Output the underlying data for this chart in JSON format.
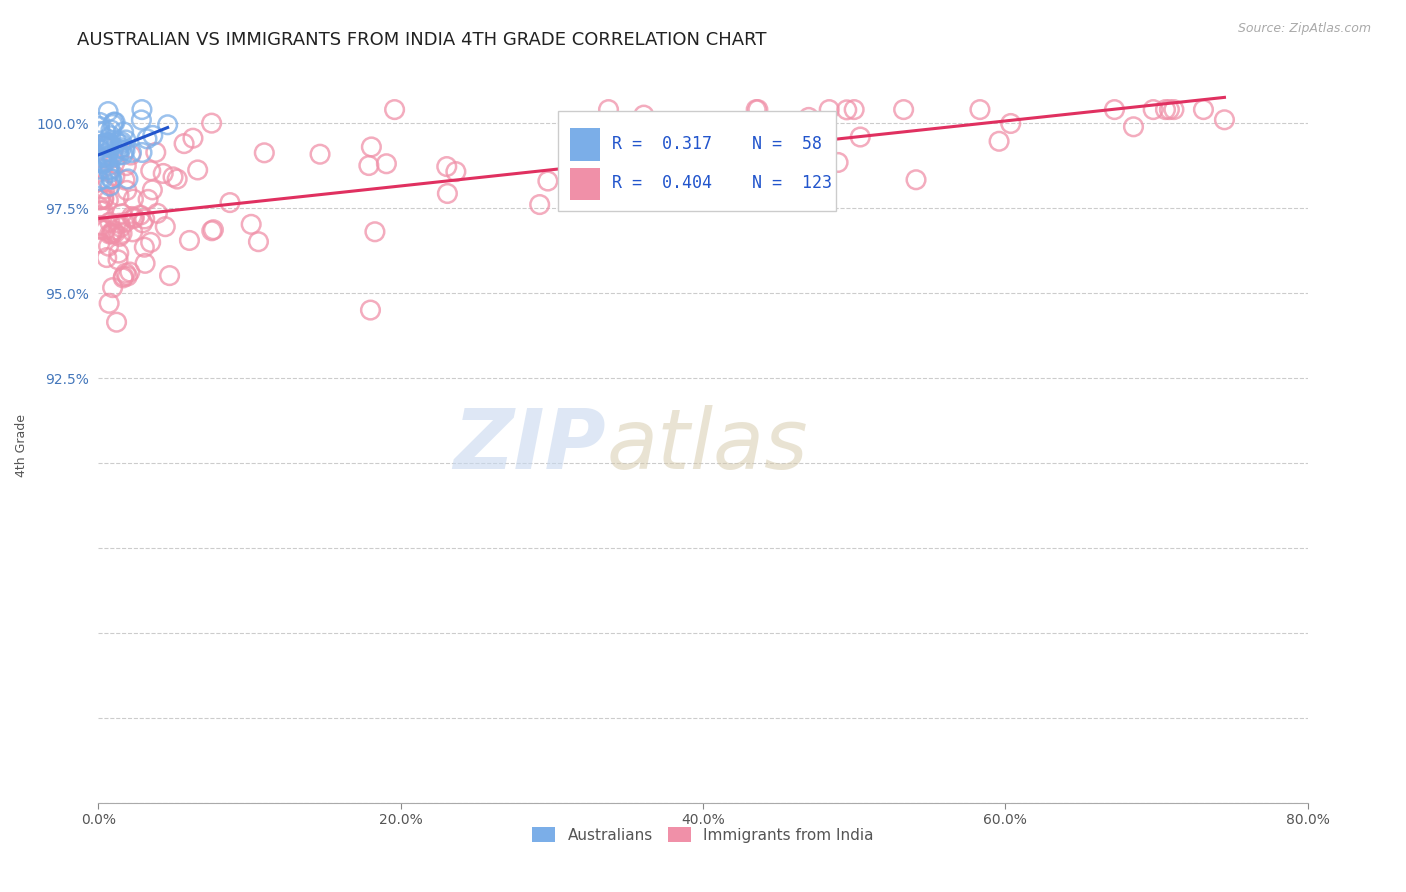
{
  "title": "AUSTRALIAN VS IMMIGRANTS FROM INDIA 4TH GRADE CORRELATION CHART",
  "source_text": "Source: ZipAtlas.com",
  "ylabel": "4th Grade",
  "xlim": [
    0.0,
    80.0
  ],
  "ylim": [
    80.0,
    101.0
  ],
  "R_australian": 0.317,
  "N_australian": 58,
  "R_india": 0.404,
  "N_india": 123,
  "color_australian": "#7baee8",
  "color_india": "#f090a8",
  "trend_color_australian": "#2255cc",
  "trend_color_india": "#e03060",
  "legend_label_australian": "Australians",
  "legend_label_india": "Immigrants from India",
  "watermark_zip": "ZIP",
  "watermark_atlas": "atlas",
  "watermark_color_zip": "#c8d8f0",
  "watermark_color_atlas": "#d0c8b0",
  "background_color": "#ffffff",
  "grid_color": "#cccccc",
  "title_fontsize": 13,
  "axis_label_fontsize": 9,
  "tick_fontsize": 10,
  "legend_fontsize": 13,
  "tick_color": "#4477bb"
}
